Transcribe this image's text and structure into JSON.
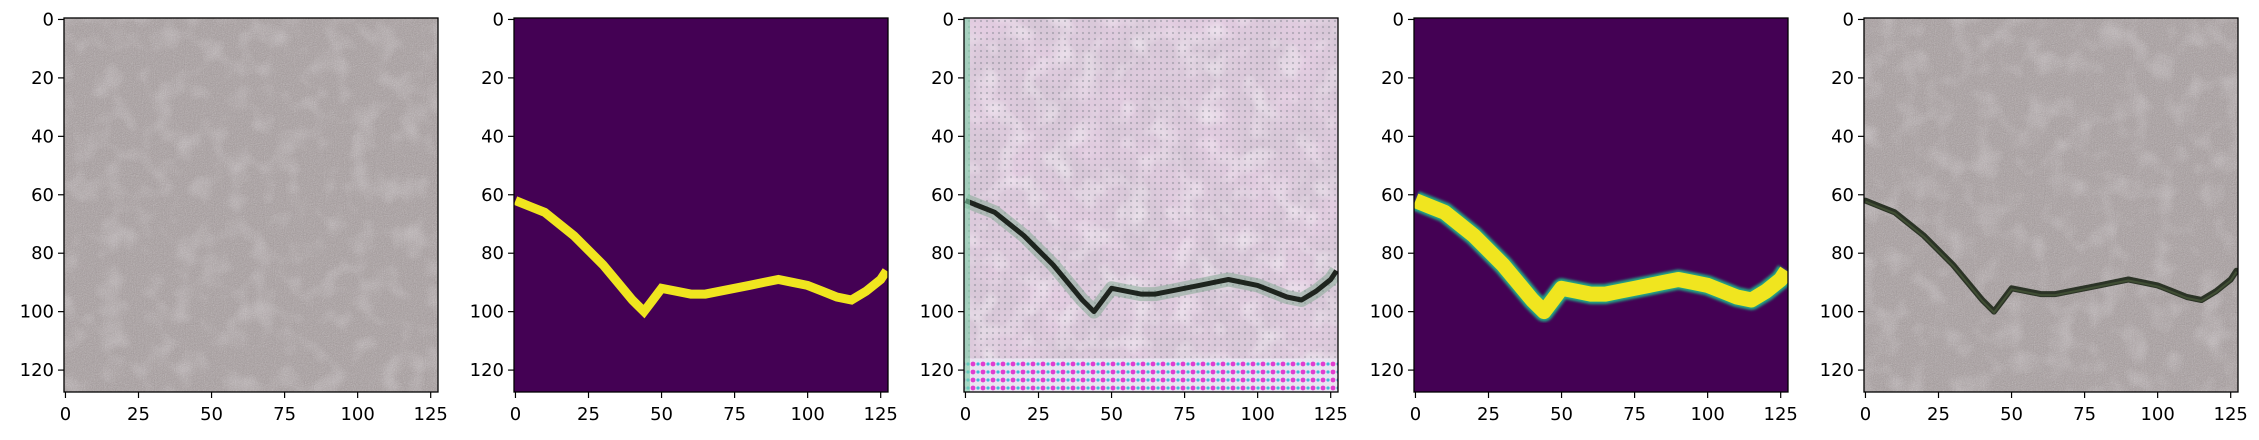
{
  "figure": {
    "panels": [
      {
        "name": "input-concrete-image",
        "kind": "photo"
      },
      {
        "name": "ground-truth-mask",
        "kind": "mask"
      },
      {
        "name": "generated-crack-image",
        "kind": "generated"
      },
      {
        "name": "predicted-mask",
        "kind": "mask-soft"
      },
      {
        "name": "reconstructed-crack-image",
        "kind": "photo-crack"
      }
    ],
    "x_ticks": [
      0,
      25,
      50,
      75,
      100,
      125
    ],
    "y_ticks": [
      0,
      20,
      40,
      60,
      80,
      100,
      120
    ],
    "x_tick_labels": [
      "0",
      "25",
      "50",
      "75",
      "100",
      "125"
    ],
    "y_tick_labels": [
      "0",
      "20",
      "40",
      "60",
      "80",
      "100",
      "120"
    ],
    "image_extent": [
      -0.5,
      127.5
    ],
    "crack_path": [
      [
        0,
        62
      ],
      [
        5,
        64
      ],
      [
        10,
        66
      ],
      [
        15,
        70
      ],
      [
        20,
        74
      ],
      [
        25,
        79
      ],
      [
        30,
        84
      ],
      [
        35,
        90
      ],
      [
        40,
        96
      ],
      [
        44,
        100
      ],
      [
        47,
        96
      ],
      [
        50,
        92
      ],
      [
        55,
        93
      ],
      [
        60,
        94
      ],
      [
        65,
        94
      ],
      [
        70,
        93
      ],
      [
        75,
        92
      ],
      [
        80,
        91
      ],
      [
        85,
        90
      ],
      [
        90,
        89
      ],
      [
        95,
        90
      ],
      [
        100,
        91
      ],
      [
        105,
        93
      ],
      [
        110,
        95
      ],
      [
        115,
        96
      ],
      [
        120,
        93
      ],
      [
        125,
        89
      ],
      [
        127,
        86
      ]
    ],
    "colors": {
      "mask_background": "#440154",
      "mask_crack": "#f0e51f",
      "mask_edge": "#21a685",
      "concrete": "#a89e9f",
      "concrete_dark": "#6f6567",
      "crack_dark": "#2b3326"
    }
  }
}
